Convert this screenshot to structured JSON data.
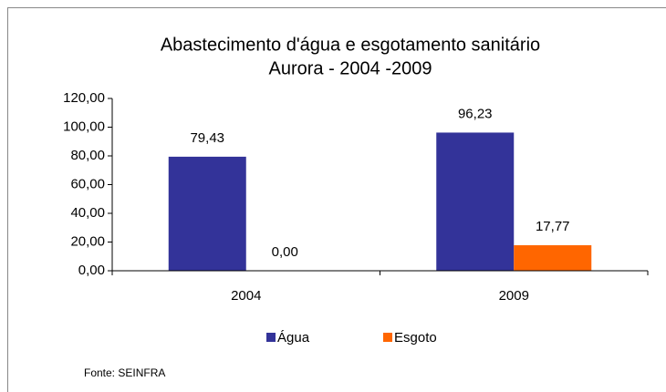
{
  "chart_data": {
    "type": "bar",
    "title": [
      "Abastecimento d'água e esgotamento sanitário",
      "Aurora - 2004 -2009"
    ],
    "categories": [
      "2004",
      "2009"
    ],
    "series": [
      {
        "name": "Água",
        "color": "#333399",
        "values": [
          79.43,
          96.23
        ],
        "value_labels": [
          "79,43",
          "96,23"
        ]
      },
      {
        "name": "Esgoto",
        "color": "#ff6600",
        "values": [
          0,
          17.77
        ],
        "value_labels": [
          "0,00",
          "17,77"
        ]
      }
    ],
    "ylim": [
      0,
      120
    ],
    "yticks": [
      {
        "value": 0,
        "label": "0,00"
      },
      {
        "value": 20,
        "label": "20,00"
      },
      {
        "value": 40,
        "label": "40,00"
      },
      {
        "value": 60,
        "label": "60,00"
      },
      {
        "value": 80,
        "label": "80,00"
      },
      {
        "value": 100,
        "label": "100,00"
      },
      {
        "value": 120,
        "label": "120,00"
      }
    ],
    "legend": "bottom",
    "note": "Fonte: SEINFRA"
  }
}
